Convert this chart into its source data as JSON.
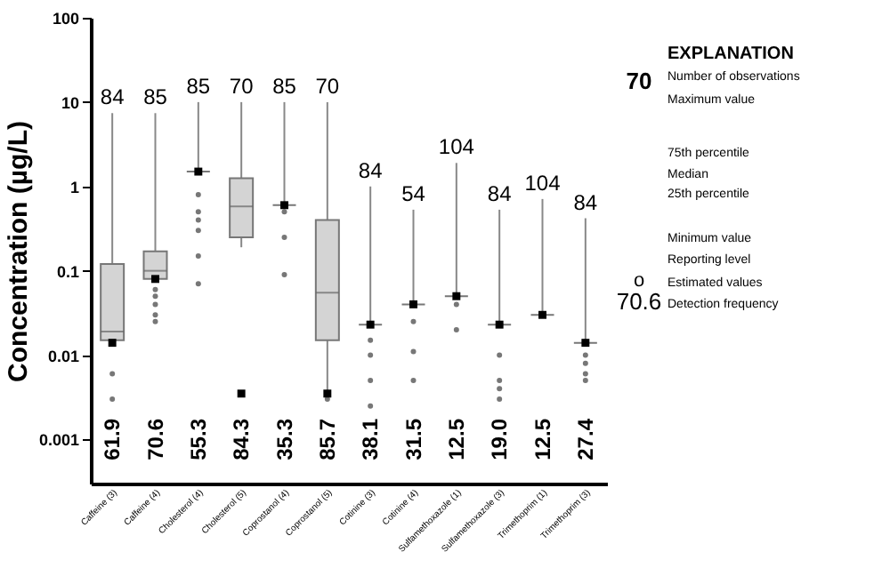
{
  "chart_data": {
    "type": "box",
    "ylabel": "Concentration (µg/L)",
    "categories": [
      "Caffeine (3)",
      "Caffeine (4)",
      "Cholesterol (4)",
      "Cholesterol (5)",
      "Coprostanol (4)",
      "Coprostanol (5)",
      "Cotinine (3)",
      "Cotinine (4)",
      "Sulfamethoxazole (1)",
      "Sulfamethoxazole (3)",
      "Trimethoprim (1)",
      "Trimethoprim (3)"
    ],
    "colors": [
      "#d4d4d4",
      "#d4d4d4",
      "#777777",
      "#d4d4d4",
      "#777777",
      "#d4d4d4",
      "#777777",
      "#777777",
      "#777777",
      "#777777",
      "#777777",
      "#777777"
    ],
    "log": true,
    "ylim": [
      0.0003,
      100
    ],
    "yticks": [
      0.001,
      0.01,
      0.1,
      1,
      10,
      100
    ],
    "grid": false,
    "boxes": [
      {
        "low": 0.014,
        "q1": 0.015,
        "median": 0.019,
        "q3": 0.12,
        "high": 7.4,
        "outliers": [
          0.006,
          0.003
        ]
      },
      {
        "low": 0.08,
        "q1": 0.08,
        "median": 0.1,
        "q3": 0.17,
        "high": 7.4,
        "outliers": [
          0.06,
          0.05,
          0.04,
          0.03,
          0.025
        ]
      },
      {
        "low": 1.5,
        "q1": 1.5,
        "median": 1.5,
        "q3": 1.5,
        "high": 10,
        "outliers": [
          0.8,
          0.5,
          0.4,
          0.3,
          0.15,
          0.07
        ]
      },
      {
        "low": 0.19,
        "q1": 0.25,
        "median": 0.58,
        "q3": 1.25,
        "high": 10
      },
      {
        "low": 0.6,
        "q1": 0.6,
        "median": 0.6,
        "q3": 0.6,
        "high": 10,
        "outliers": [
          0.5,
          0.25,
          0.09
        ]
      },
      {
        "low": 0.0035,
        "q1": 0.015,
        "median": 0.055,
        "q3": 0.4,
        "high": 10,
        "outliers": [
          0.003
        ]
      },
      {
        "low": 0.023,
        "q1": 0.023,
        "median": 0.023,
        "q3": 0.023,
        "high": 1,
        "outliers": [
          0.015,
          0.01,
          0.005,
          0.0025
        ]
      },
      {
        "low": 0.04,
        "q1": 0.04,
        "median": 0.04,
        "q3": 0.04,
        "high": 0.53,
        "outliers": [
          0.025,
          0.011,
          0.005
        ]
      },
      {
        "low": 0.05,
        "q1": 0.05,
        "median": 0.05,
        "q3": 0.05,
        "high": 1.9,
        "outliers": [
          0.04,
          0.02
        ]
      },
      {
        "low": 0.023,
        "q1": 0.023,
        "median": 0.023,
        "q3": 0.023,
        "high": 0.53,
        "outliers": [
          0.01,
          0.005,
          0.004,
          0.003
        ]
      },
      {
        "low": 0.03,
        "q1": 0.03,
        "median": 0.03,
        "q3": 0.03,
        "high": 0.71
      },
      {
        "low": 0.014,
        "q1": 0.014,
        "median": 0.014,
        "q3": 0.014,
        "high": 0.42,
        "outliers": [
          0.01,
          0.008,
          0.006,
          0.005
        ]
      }
    ],
    "series": [
      {
        "type": "scatter",
        "color": "#000000",
        "marker": "square",
        "values": [
          0.014,
          0.08,
          1.5,
          0.0035,
          0.6,
          0.0035,
          0.023,
          0.04,
          0.05,
          0.023,
          0.03,
          0.014
        ]
      }
    ],
    "annotations": [
      "84",
      "85",
      "85",
      "70",
      "85",
      "70",
      "84",
      "54",
      "104",
      "84",
      "104",
      "84",
      "61.9",
      "70.6",
      "55.3",
      "84.3",
      "35.3",
      "85.7",
      "38.1",
      "31.5",
      "12.5",
      "19.0",
      "12.5",
      "27.4",
      "EXPLANATION",
      "70",
      "Number of observations",
      "Maximum value",
      "75th percentile",
      "Median",
      "25th percentile",
      "Minimum value",
      "Reporting level",
      "o",
      "Estimated values",
      "70.6",
      "Detection frequency"
    ]
  }
}
